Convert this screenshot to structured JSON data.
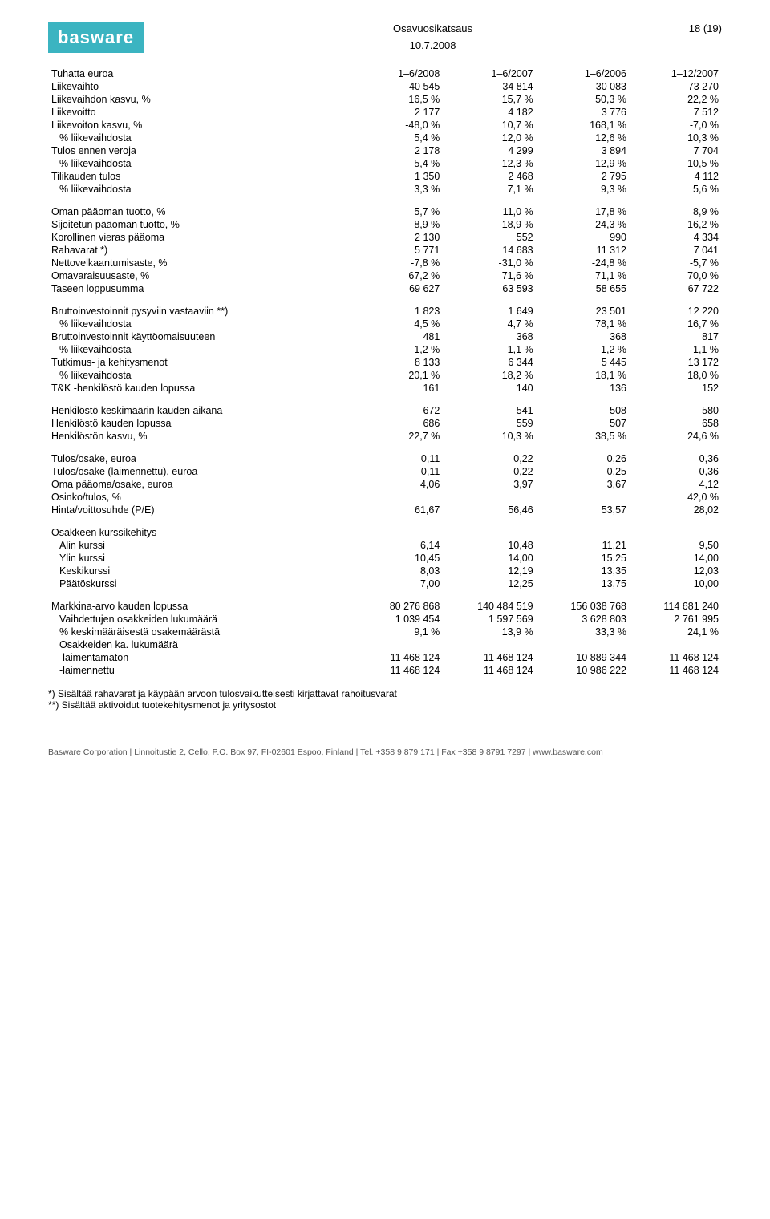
{
  "header": {
    "logo_text": "basware",
    "title": "Osavuosikatsaus",
    "page_marker": "18 (19)",
    "date": "10.7.2008"
  },
  "columns": {
    "label": "Tuhatta euroa",
    "c1": "1–6/2008",
    "c2": "1–6/2007",
    "c3": "1–6/2006",
    "c4": "1–12/2007"
  },
  "blocks": [
    {
      "rows": [
        {
          "label": "Liikevaihto",
          "v": [
            "40 545",
            "34 814",
            "30 083",
            "73 270"
          ]
        },
        {
          "label": "Liikevaihdon kasvu, %",
          "v": [
            "16,5 %",
            "15,7 %",
            "50,3 %",
            "22,2 %"
          ]
        },
        {
          "label": "Liikevoitto",
          "v": [
            "2 177",
            "4 182",
            "3 776",
            "7 512"
          ]
        },
        {
          "label": "Liikevoiton kasvu, %",
          "v": [
            "-48,0 %",
            "10,7 %",
            "168,1 %",
            "-7,0 %"
          ]
        },
        {
          "label": "% liikevaihdosta",
          "indent": 1,
          "v": [
            "5,4 %",
            "12,0 %",
            "12,6 %",
            "10,3 %"
          ]
        },
        {
          "label": "Tulos ennen veroja",
          "v": [
            "2 178",
            "4 299",
            "3 894",
            "7 704"
          ]
        },
        {
          "label": "% liikevaihdosta",
          "indent": 1,
          "v": [
            "5,4 %",
            "12,3 %",
            "12,9 %",
            "10,5 %"
          ]
        },
        {
          "label": "Tilikauden tulos",
          "v": [
            "1 350",
            "2 468",
            "2 795",
            "4 112"
          ]
        },
        {
          "label": "% liikevaihdosta",
          "indent": 1,
          "v": [
            "3,3 %",
            "7,1 %",
            "9,3 %",
            "5,6 %"
          ]
        }
      ]
    },
    {
      "rows": [
        {
          "label": "Oman pääoman tuotto, %",
          "v": [
            "5,7 %",
            "11,0 %",
            "17,8 %",
            "8,9 %"
          ]
        },
        {
          "label": "Sijoitetun pääoman tuotto, %",
          "v": [
            "8,9 %",
            "18,9 %",
            "24,3 %",
            "16,2 %"
          ]
        },
        {
          "label": "Korollinen vieras pääoma",
          "v": [
            "2 130",
            "552",
            "990",
            "4 334"
          ]
        },
        {
          "label": "Rahavarat *)",
          "v": [
            "5 771",
            "14 683",
            "11 312",
            "7 041"
          ]
        },
        {
          "label": "Nettovelkaantumisaste, %",
          "v": [
            "-7,8 %",
            "-31,0 %",
            "-24,8 %",
            "-5,7 %"
          ]
        },
        {
          "label": "Omavaraisuusaste, %",
          "v": [
            "67,2 %",
            "71,6 %",
            "71,1 %",
            "70,0 %"
          ]
        },
        {
          "label": "Taseen loppusumma",
          "v": [
            "69 627",
            "63 593",
            "58 655",
            "67 722"
          ]
        }
      ]
    },
    {
      "rows": [
        {
          "label": "Bruttoinvestoinnit pysyviin vastaaviin **)",
          "v": [
            "1 823",
            "1 649",
            "23 501",
            "12 220"
          ]
        },
        {
          "label": "% liikevaihdosta",
          "indent": 1,
          "v": [
            "4,5 %",
            "4,7 %",
            "78,1 %",
            "16,7 %"
          ]
        },
        {
          "label": "Bruttoinvestoinnit käyttöomaisuuteen",
          "v": [
            "481",
            "368",
            "368",
            "817"
          ]
        },
        {
          "label": "% liikevaihdosta",
          "indent": 1,
          "v": [
            "1,2 %",
            "1,1 %",
            "1,2 %",
            "1,1 %"
          ]
        },
        {
          "label": "Tutkimus- ja kehitysmenot",
          "v": [
            "8 133",
            "6 344",
            "5 445",
            "13 172"
          ]
        },
        {
          "label": "% liikevaihdosta",
          "indent": 1,
          "v": [
            "20,1 %",
            "18,2 %",
            "18,1 %",
            "18,0 %"
          ]
        },
        {
          "label": "T&K -henkilöstö kauden lopussa",
          "v": [
            "161",
            "140",
            "136",
            "152"
          ]
        }
      ]
    },
    {
      "rows": [
        {
          "label": "Henkilöstö keskimäärin kauden aikana",
          "v": [
            "672",
            "541",
            "508",
            "580"
          ]
        },
        {
          "label": "Henkilöstö kauden lopussa",
          "v": [
            "686",
            "559",
            "507",
            "658"
          ]
        },
        {
          "label": "Henkilöstön kasvu, %",
          "v": [
            "22,7 %",
            "10,3 %",
            "38,5 %",
            "24,6 %"
          ]
        }
      ]
    },
    {
      "rows": [
        {
          "label": "Tulos/osake, euroa",
          "v": [
            "0,11",
            "0,22",
            "0,26",
            "0,36"
          ]
        },
        {
          "label": "Tulos/osake (laimennettu), euroa",
          "v": [
            "0,11",
            "0,22",
            "0,25",
            "0,36"
          ]
        },
        {
          "label": "Oma pääoma/osake, euroa",
          "v": [
            "4,06",
            "3,97",
            "3,67",
            "4,12"
          ]
        },
        {
          "label": "Osinko/tulos, %",
          "v": [
            "",
            "",
            "",
            "42,0 %"
          ]
        },
        {
          "label": "Hinta/voittosuhde (P/E)",
          "v": [
            "61,67",
            "56,46",
            "53,57",
            "28,02"
          ]
        }
      ]
    },
    {
      "rows": [
        {
          "label": "Osakkeen kurssikehitys",
          "v": [
            "",
            "",
            "",
            ""
          ]
        },
        {
          "label": "Alin kurssi",
          "indent": 1,
          "v": [
            "6,14",
            "10,48",
            "11,21",
            "9,50"
          ]
        },
        {
          "label": "Ylin kurssi",
          "indent": 1,
          "v": [
            "10,45",
            "14,00",
            "15,25",
            "14,00"
          ]
        },
        {
          "label": "Keskikurssi",
          "indent": 1,
          "v": [
            "8,03",
            "12,19",
            "13,35",
            "12,03"
          ]
        },
        {
          "label": "Päätöskurssi",
          "indent": 1,
          "v": [
            "7,00",
            "12,25",
            "13,75",
            "10,00"
          ]
        }
      ]
    },
    {
      "rows": [
        {
          "label": "Markkina-arvo kauden lopussa",
          "v": [
            "80 276 868",
            "140 484 519",
            "156 038 768",
            "114 681 240"
          ]
        },
        {
          "label": "Vaihdettujen osakkeiden lukumäärä",
          "indent": 1,
          "v": [
            "1 039 454",
            "1 597 569",
            "3 628 803",
            "2 761 995"
          ]
        },
        {
          "label": "% keskimääräisestä osakemäärästä",
          "indent": 1,
          "v": [
            "9,1 %",
            "13,9 %",
            "33,3 %",
            "24,1 %"
          ]
        },
        {
          "label": "Osakkeiden ka. lukumäärä",
          "indent": 1,
          "v": [
            "",
            "",
            "",
            ""
          ]
        },
        {
          "label": "-laimentamaton",
          "indent": 1,
          "v": [
            "11 468 124",
            "11 468 124",
            "10 889 344",
            "11 468 124"
          ]
        },
        {
          "label": "-laimennettu",
          "indent": 1,
          "v": [
            "11 468 124",
            "11 468 124",
            "10 986 222",
            "11 468 124"
          ]
        }
      ]
    }
  ],
  "footnotes": [
    "*) Sisältää rahavarat ja käypään arvoon tulosvaikutteisesti kirjattavat rahoitusvarat",
    "**) Sisältää aktivoidut tuotekehitysmenot ja yritysostot"
  ],
  "footer": {
    "text": "Basware Corporation | Linnoitustie 2, Cello, P.O. Box 97, FI-02601 Espoo, Finland | Tel. +358 9 879 171 | Fax +358 9 8791 7297 | www.basware.com"
  }
}
